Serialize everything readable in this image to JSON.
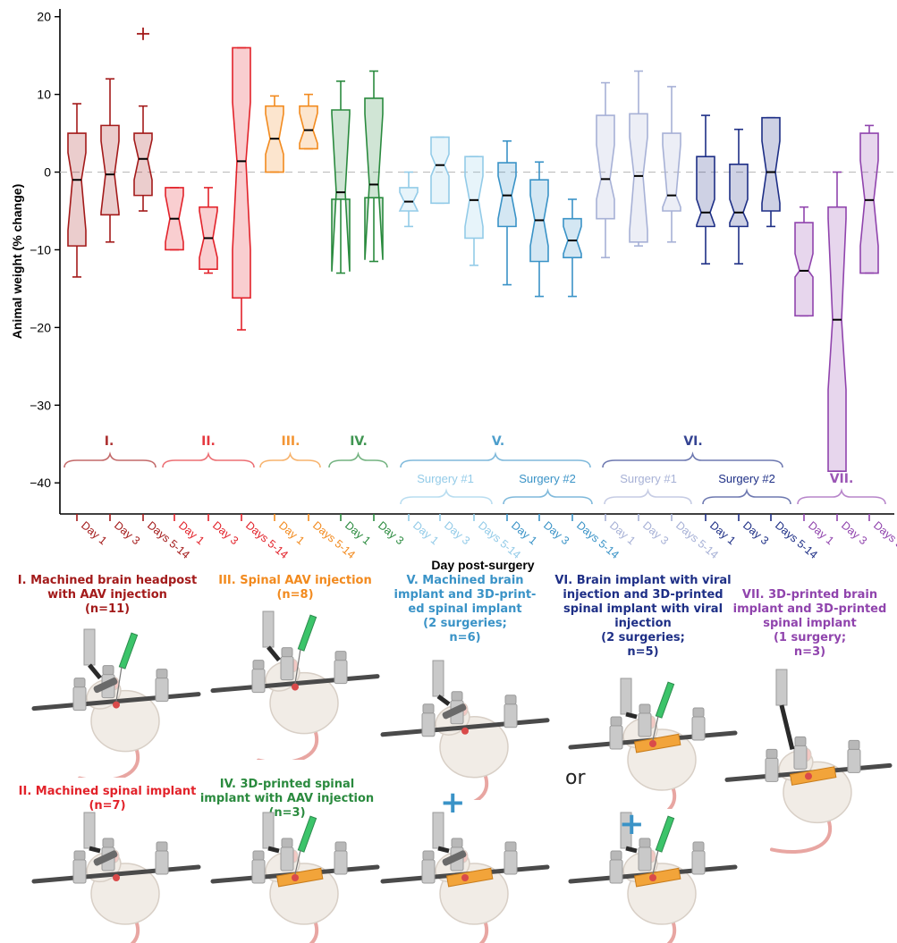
{
  "chart_data": {
    "type": "box",
    "ylabel": "Animal weight (% change)",
    "xlabel": "Day post-surgery",
    "ylim": [
      -44,
      21
    ],
    "yticks": [
      20,
      10,
      0,
      -10,
      -20,
      -30,
      -40
    ],
    "ytick_labels": [
      "20",
      "10",
      "0",
      "−10",
      "−20",
      "−30",
      "−40"
    ],
    "reference_line": 0,
    "boxes": [
      {
        "label": "Day 1",
        "group": "I.",
        "color": "#a31a1a",
        "q1": -9.5,
        "median": -1,
        "q3": 5,
        "whisker_low": -13.5,
        "whisker_high": 8.8,
        "notch_low": -7.5,
        "notch_high": 2.5,
        "outliers": []
      },
      {
        "label": "Day 3",
        "group": "I.",
        "color": "#a31a1a",
        "q1": -5.5,
        "median": -0.3,
        "q3": 6,
        "whisker_low": -9,
        "whisker_high": 12,
        "notch_low": -5.2,
        "notch_high": 4,
        "outliers": []
      },
      {
        "label": "Days 5-14",
        "group": "I.",
        "color": "#a31a1a",
        "q1": -3,
        "median": 1.7,
        "q3": 5,
        "whisker_low": -5,
        "whisker_high": 8.5,
        "notch_low": -1,
        "notch_high": 4.2,
        "outliers": [
          17.8
        ]
      },
      {
        "label": "Day 1",
        "group": "II.",
        "color": "#e2222a",
        "q1": -10,
        "median": -6,
        "q3": -2,
        "whisker_low": -10,
        "whisker_high": -2,
        "notch_low": -9,
        "notch_high": -3,
        "outliers": []
      },
      {
        "label": "Day 3",
        "group": "II.",
        "color": "#e2222a",
        "q1": -12.5,
        "median": -8.5,
        "q3": -4.5,
        "whisker_low": -13,
        "whisker_high": -2,
        "notch_low": -11,
        "notch_high": -5,
        "outliers": []
      },
      {
        "label": "Days 5-14",
        "group": "II.",
        "color": "#e2222a",
        "q1": -16.2,
        "median": 1.4,
        "q3": 16,
        "whisker_low": -20.3,
        "whisker_high": 16,
        "notch_low": -10,
        "notch_high": 9,
        "outliers": []
      },
      {
        "label": "Day 1",
        "group": "III.",
        "color": "#f28a1e",
        "q1": 0,
        "median": 4.3,
        "q3": 8.5,
        "whisker_low": 0,
        "whisker_high": 9.8,
        "notch_low": 2.3,
        "notch_high": 7.5,
        "outliers": []
      },
      {
        "label": "Days 5-14",
        "group": "III.",
        "color": "#f28a1e",
        "q1": 3,
        "median": 5.4,
        "q3": 8.5,
        "whisker_low": 3,
        "whisker_high": 10,
        "notch_low": 3.7,
        "notch_high": 7.6,
        "outliers": []
      },
      {
        "label": "Day 1",
        "group": "IV.",
        "color": "#2a8a3e",
        "q1": -3.5,
        "median": -2.6,
        "q3": 8,
        "whisker_low": -13,
        "whisker_high": 11.7,
        "notch_low": -12.8,
        "notch_high": 7.5,
        "outliers": []
      },
      {
        "label": "Day 3",
        "group": "IV.",
        "color": "#2a8a3e",
        "q1": -3.3,
        "median": -1.6,
        "q3": 9.5,
        "whisker_low": -11.5,
        "whisker_high": 13,
        "notch_low": -11.3,
        "notch_high": 7.5,
        "outliers": []
      },
      {
        "label": "Day 1",
        "group": "V. Surgery #1",
        "color": "#93cbe8",
        "q1": -5,
        "median": -3.8,
        "q3": -2,
        "whisker_low": -7,
        "whisker_high": 0,
        "notch_low": -5,
        "notch_high": -2.6,
        "outliers": []
      },
      {
        "label": "Day 3",
        "group": "V. Surgery #1",
        "color": "#93cbe8",
        "q1": -4,
        "median": 0.9,
        "q3": 4.5,
        "whisker_low": -4,
        "whisker_high": 4.5,
        "notch_low": -0.5,
        "notch_high": 2.3,
        "outliers": []
      },
      {
        "label": "Days 5-14",
        "group": "V. Surgery #1",
        "color": "#93cbe8",
        "q1": -8.5,
        "median": -3.6,
        "q3": 2,
        "whisker_low": -12,
        "whisker_high": 2,
        "notch_low": -7,
        "notch_high": -0.5,
        "outliers": []
      },
      {
        "label": "Day 1",
        "group": "V. Surgery #2",
        "color": "#3a93c7",
        "q1": -7,
        "median": -3,
        "q3": 1.2,
        "whisker_low": -14.5,
        "whisker_high": 4,
        "notch_low": -6,
        "notch_high": -0.5,
        "outliers": []
      },
      {
        "label": "Day 3",
        "group": "V. Surgery #2",
        "color": "#3a93c7",
        "q1": -11.5,
        "median": -6.2,
        "q3": -1,
        "whisker_low": -16,
        "whisker_high": 1.3,
        "notch_low": -9.5,
        "notch_high": -3,
        "outliers": []
      },
      {
        "label": "Days 5-14",
        "group": "V. Surgery #2",
        "color": "#3a93c7",
        "q1": -11,
        "median": -8.8,
        "q3": -6,
        "whisker_low": -16,
        "whisker_high": -3.5,
        "notch_low": -10.5,
        "notch_high": -7,
        "outliers": []
      },
      {
        "label": "Day 1",
        "group": "VI. Surgery #1",
        "color": "#a7b1d6",
        "q1": -6,
        "median": -0.9,
        "q3": 7.3,
        "whisker_low": -11,
        "whisker_high": 11.5,
        "notch_low": -3.5,
        "notch_high": 3.5,
        "outliers": []
      },
      {
        "label": "Day 3",
        "group": "VI. Surgery #1",
        "color": "#a7b1d6",
        "q1": -9,
        "median": -0.5,
        "q3": 7.5,
        "whisker_low": -9.5,
        "whisker_high": 13,
        "notch_low": -7.5,
        "notch_high": 4.5,
        "outliers": []
      },
      {
        "label": "Days 5-14",
        "group": "VI. Surgery #1",
        "color": "#a7b1d6",
        "q1": -5,
        "median": -3,
        "q3": 5,
        "whisker_low": -9,
        "whisker_high": 11,
        "notch_low": -4.5,
        "notch_high": 3.5,
        "outliers": []
      },
      {
        "label": "Day 1",
        "group": "VI. Surgery #2",
        "color": "#1e2f86",
        "q1": -7,
        "median": -5.2,
        "q3": 2,
        "whisker_low": -11.8,
        "whisker_high": 7.3,
        "notch_low": -6.8,
        "notch_high": -3.5,
        "outliers": []
      },
      {
        "label": "Day 3",
        "group": "VI. Surgery #2",
        "color": "#1e2f86",
        "q1": -7,
        "median": -5.2,
        "q3": 1,
        "whisker_low": -11.8,
        "whisker_high": 5.5,
        "notch_low": -6.5,
        "notch_high": -3.5,
        "outliers": []
      },
      {
        "label": "Days 5-14",
        "group": "VI. Surgery #2",
        "color": "#1e2f86",
        "q1": -5,
        "median": 0,
        "q3": 7,
        "whisker_low": -7,
        "whisker_high": 7,
        "notch_low": -4,
        "notch_high": 4,
        "outliers": []
      },
      {
        "label": "Day 1",
        "group": "VII.",
        "color": "#9044ad",
        "q1": -18.5,
        "median": -12.7,
        "q3": -6.5,
        "whisker_low": -18.5,
        "whisker_high": -4.5,
        "notch_low": -13.5,
        "notch_high": -10.5,
        "outliers": []
      },
      {
        "label": "Day 3",
        "group": "VII.",
        "color": "#9044ad",
        "q1": -38.5,
        "median": -19,
        "q3": -4.5,
        "whisker_low": -38.5,
        "whisker_high": 0,
        "notch_low": -28,
        "notch_high": -6,
        "outliers": []
      },
      {
        "label": "Days 5-14",
        "group": "VII.",
        "color": "#9044ad",
        "q1": -13,
        "median": -3.6,
        "q3": 5,
        "whisker_low": -13,
        "whisker_high": 6,
        "notch_low": -9.5,
        "notch_high": 1.5,
        "outliers": []
      }
    ],
    "groups": [
      {
        "label": "I.",
        "color": "#a31a1a"
      },
      {
        "label": "II.",
        "color": "#e2222a"
      },
      {
        "label": "III.",
        "color": "#f28a1e"
      },
      {
        "label": "IV.",
        "color": "#2a8a3e"
      },
      {
        "label": "V.",
        "color": "#3a93c7"
      },
      {
        "label": "VI.",
        "color": "#1e2f86"
      },
      {
        "label": "VII.",
        "color": "#9044ad"
      }
    ],
    "subgroups": [
      {
        "label": "Surgery #1",
        "color": "#93cbe8"
      },
      {
        "label": "Surgery #2",
        "color": "#3a93c7"
      },
      {
        "label": "Surgery #1",
        "color": "#a7b1d6"
      },
      {
        "label": "Surgery #2",
        "color": "#1e2f86"
      }
    ]
  },
  "panels": [
    {
      "id": "I",
      "color": "#a31a1a",
      "lines": [
        "I. Machined brain headpost",
        "with AAV injection",
        "(n=11)"
      ]
    },
    {
      "id": "II",
      "color": "#e2222a",
      "lines": [
        "II. Machined spinal implant",
        "(n=7)"
      ]
    },
    {
      "id": "III",
      "color": "#f28a1e",
      "lines": [
        "III. Spinal AAV injection",
        "(n=8)"
      ]
    },
    {
      "id": "IV",
      "color": "#2a8a3e",
      "lines": [
        "IV. 3D-printed spinal",
        "implant with AAV injection",
        "(n=3)"
      ]
    },
    {
      "id": "V",
      "color": "#3a93c7",
      "lines": [
        "V. Machined brain",
        "implant and 3D-print-",
        "ed spinal implant",
        "(2 surgeries;",
        "n=6)"
      ]
    },
    {
      "id": "VI",
      "color": "#1e2f86",
      "lines": [
        "VI. Brain implant with viral",
        "injection and 3D-printed",
        "spinal implant with viral",
        "injection",
        "(2 surgeries;",
        "n=5)"
      ]
    },
    {
      "id": "VII",
      "color": "#9044ad",
      "lines": [
        "VII. 3D-printed brain",
        "implant and 3D-printed",
        "spinal implant",
        "(1 surgery;",
        "n=3)"
      ]
    }
  ],
  "illustration": {
    "plus_symbol": "+",
    "or_text": "or",
    "colors": {
      "mouse": "#f1ece6",
      "mouse_outline": "#d8cfc6",
      "tail": "#e8a6a2",
      "stereotax": "#c9c9c9",
      "bar": "#4a4a4a",
      "implant": "#f2a43a",
      "syringe": "#3cc46a",
      "headpost": "#6a6a6a"
    }
  }
}
